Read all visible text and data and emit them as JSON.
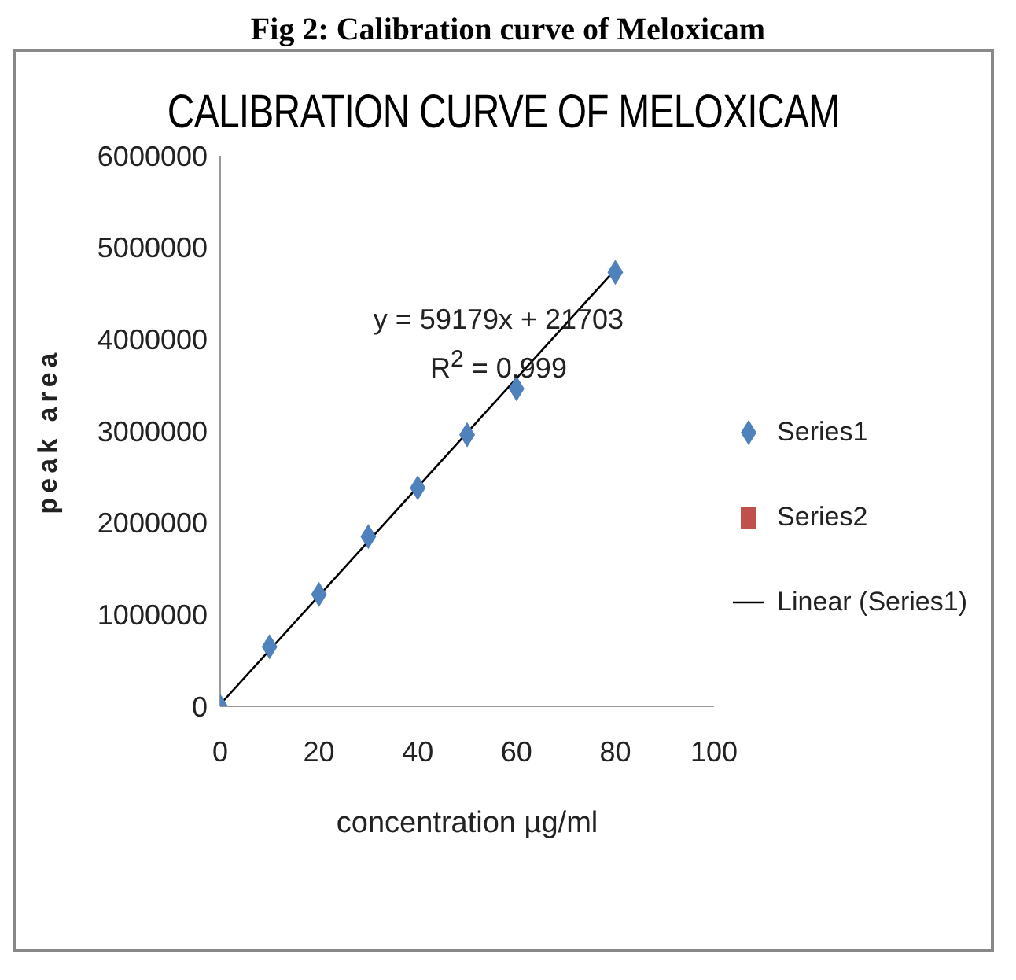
{
  "chart_data": {
    "type": "scatter",
    "title": "CALIBRATION CURVE OF MELOXICAM",
    "xlabel": "concentration µg/ml",
    "ylabel": "peak area",
    "annotations": [
      "Fig 2: Calibration curve of Meloxicam",
      "y = 59179x + 21703",
      "R$^{2}$ = 0.999"
    ],
    "x": [
      0,
      10,
      20,
      30,
      40,
      50,
      60,
      80
    ],
    "series": [
      {
        "name": "Series1",
        "color": "#4f81bd",
        "marker": "diamond",
        "values": [
          0,
          650000,
          1220000,
          1850000,
          2380000,
          2960000,
          3460000,
          4730000
        ]
      },
      {
        "name": "Series2",
        "color": "#c0504d",
        "marker": "square",
        "values": [
          null,
          null,
          null,
          null,
          null,
          null,
          null,
          null
        ]
      },
      {
        "name": "Linear (Series1)",
        "type": "line",
        "color": "#000000",
        "marker": "none",
        "x": [
          0,
          80
        ],
        "values": [
          20000,
          4760000
        ]
      }
    ],
    "xlim": [
      0,
      100
    ],
    "xticks": [
      0,
      20,
      40,
      60,
      80,
      100
    ],
    "ylim": [
      0,
      6000000
    ],
    "yticks": [
      0,
      1000000,
      2000000,
      3000000,
      4000000,
      5000000,
      6000000
    ],
    "grid": false,
    "legend": "right"
  }
}
